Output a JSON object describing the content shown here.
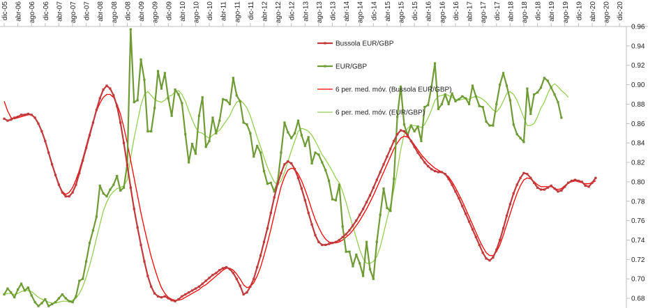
{
  "chart_data": {
    "type": "line",
    "x_tick_labels": [
      "dic-05",
      "abr-06",
      "ago-06",
      "dic-06",
      "abr-07",
      "ago-07",
      "dic-07",
      "abr-08",
      "ago-08",
      "dic-08",
      "abr-09",
      "ago-09",
      "dic-09",
      "abr-10",
      "ago-10",
      "dic-10",
      "abr-11",
      "ago-11",
      "dic-11",
      "abr-12",
      "ago-12",
      "dic-12",
      "abr-13",
      "ago-13",
      "dic-13",
      "abr-14",
      "ago-14",
      "dic-14",
      "abr-15",
      "ago-15",
      "dic-15",
      "abr-16",
      "ago-16",
      "dic-16",
      "abr-17",
      "ago-17",
      "dic-17",
      "abr-18",
      "ago-18",
      "dic-18",
      "abr-19",
      "ago-19",
      "dic-19",
      "abr-20",
      "ago-20",
      "dic-20"
    ],
    "ylim": [
      0.67,
      0.96
    ],
    "y_ticks": [
      "0.68",
      "0.70",
      "0.72",
      "0.74",
      "0.76",
      "0.78",
      "0.80",
      "0.82",
      "0.84",
      "0.86",
      "0.88",
      "0.90",
      "0.92",
      "0.94",
      "0.96"
    ],
    "series": [
      {
        "name": "Bussola EUR/GBP",
        "color": "#c0393b",
        "marker": "square",
        "values": [
          0.865,
          0.863,
          0.864,
          0.866,
          0.867,
          0.869,
          0.869,
          0.87,
          0.869,
          0.866,
          0.86,
          0.852,
          0.842,
          0.83,
          0.818,
          0.807,
          0.797,
          0.789,
          0.785,
          0.785,
          0.789,
          0.797,
          0.809,
          0.822,
          0.835,
          0.848,
          0.861,
          0.874,
          0.886,
          0.895,
          0.899,
          0.896,
          0.889,
          0.878,
          0.861,
          0.84,
          0.817,
          0.794,
          0.772,
          0.753,
          0.735,
          0.718,
          0.703,
          0.692,
          0.685,
          0.682,
          0.681,
          0.682,
          0.68,
          0.678,
          0.677,
          0.679,
          0.682,
          0.684,
          0.686,
          0.688,
          0.69,
          0.692,
          0.695,
          0.698,
          0.701,
          0.704,
          0.706,
          0.709,
          0.711,
          0.712,
          0.71,
          0.706,
          0.7,
          0.693,
          0.684,
          0.686,
          0.692,
          0.7,
          0.712,
          0.724,
          0.738,
          0.752,
          0.768,
          0.784,
          0.798,
          0.809,
          0.818,
          0.821,
          0.819,
          0.813,
          0.804,
          0.793,
          0.781,
          0.768,
          0.756,
          0.745,
          0.738,
          0.735,
          0.735,
          0.736,
          0.737,
          0.738,
          0.74,
          0.743,
          0.746,
          0.75,
          0.755,
          0.76,
          0.766,
          0.772,
          0.779,
          0.786,
          0.794,
          0.802,
          0.81,
          0.818,
          0.826,
          0.834,
          0.842,
          0.849,
          0.853,
          0.852,
          0.848,
          0.842,
          0.836,
          0.83,
          0.825,
          0.82,
          0.816,
          0.813,
          0.811,
          0.81,
          0.81,
          0.808,
          0.803,
          0.797,
          0.79,
          0.783,
          0.775,
          0.767,
          0.759,
          0.751,
          0.743,
          0.735,
          0.727,
          0.721,
          0.719,
          0.722,
          0.73,
          0.74,
          0.752,
          0.765,
          0.777,
          0.788,
          0.797,
          0.804,
          0.809,
          0.808,
          0.804,
          0.799,
          0.794,
          0.792,
          0.792,
          0.794,
          0.796,
          0.793,
          0.79,
          0.791,
          0.795,
          0.799,
          0.801,
          0.802,
          0.801,
          0.8,
          0.796,
          0.795,
          0.799,
          0.804
        ]
      },
      {
        "name": "EUR/GBP",
        "color": "#6e9b34",
        "marker": "square",
        "values": [
          0.684,
          0.69,
          0.686,
          0.681,
          0.689,
          0.695,
          0.688,
          0.691,
          0.683,
          0.676,
          0.672,
          0.675,
          0.679,
          0.672,
          0.674,
          0.676,
          0.68,
          0.684,
          0.68,
          0.677,
          0.676,
          0.682,
          0.698,
          0.7,
          0.718,
          0.737,
          0.75,
          0.764,
          0.796,
          0.788,
          0.785,
          0.792,
          0.797,
          0.806,
          0.791,
          0.794,
          0.818,
          0.957,
          0.882,
          0.884,
          0.926,
          0.905,
          0.852,
          0.852,
          0.876,
          0.914,
          0.896,
          0.912,
          0.886,
          0.868,
          0.895,
          0.89,
          0.881,
          0.849,
          0.82,
          0.839,
          0.829,
          0.868,
          0.887,
          0.836,
          0.842,
          0.866,
          0.85,
          0.863,
          0.885,
          0.884,
          0.88,
          0.907,
          0.889,
          0.883,
          0.861,
          0.859,
          0.85,
          0.826,
          0.837,
          0.83,
          0.811,
          0.798,
          0.799,
          0.79,
          0.8,
          0.83,
          0.861,
          0.851,
          0.845,
          0.85,
          0.863,
          0.848,
          0.837,
          0.846,
          0.819,
          0.83,
          0.828,
          0.82,
          0.812,
          0.801,
          0.782,
          0.781,
          0.797,
          0.754,
          0.728,
          0.728,
          0.713,
          0.725,
          0.716,
          0.703,
          0.738,
          0.71,
          0.7,
          0.738,
          0.766,
          0.793,
          0.773,
          0.77,
          0.803,
          0.867,
          0.898,
          0.859,
          0.848,
          0.858,
          0.852,
          0.857,
          0.842,
          0.877,
          0.879,
          0.898,
          0.922,
          0.875,
          0.88,
          0.89,
          0.88,
          0.891,
          0.883,
          0.885,
          0.888,
          0.886,
          0.88,
          0.899,
          0.888,
          0.878,
          0.877,
          0.862,
          0.858,
          0.858,
          0.88,
          0.9,
          0.912,
          0.899,
          0.884,
          0.859,
          0.849,
          0.845,
          0.841,
          0.896,
          0.87,
          0.89,
          0.892,
          0.897,
          0.907,
          0.904,
          0.897,
          0.89,
          0.882,
          0.866
        ]
      },
      {
        "name": "6 per. med. móv. (Bussola EUR/GBP)",
        "color": "#ff0000",
        "marker": "none",
        "values": [
          0.883,
          0.873,
          0.866,
          0.865,
          0.866,
          0.867,
          0.868,
          0.869,
          0.869,
          0.866,
          0.86,
          0.852,
          0.842,
          0.83,
          0.818,
          0.807,
          0.797,
          0.79,
          0.787,
          0.789,
          0.794,
          0.802,
          0.812,
          0.824,
          0.837,
          0.85,
          0.862,
          0.873,
          0.881,
          0.887,
          0.89,
          0.89,
          0.887,
          0.88,
          0.87,
          0.856,
          0.84,
          0.822,
          0.804,
          0.786,
          0.768,
          0.752,
          0.737,
          0.723,
          0.711,
          0.7,
          0.691,
          0.685,
          0.681,
          0.679,
          0.678,
          0.678,
          0.679,
          0.681,
          0.683,
          0.685,
          0.687,
          0.689,
          0.692,
          0.694,
          0.697,
          0.7,
          0.703,
          0.706,
          0.709,
          0.711,
          0.711,
          0.709,
          0.705,
          0.7,
          0.694,
          0.691,
          0.692,
          0.696,
          0.703,
          0.712,
          0.724,
          0.737,
          0.751,
          0.766,
          0.781,
          0.795,
          0.805,
          0.812,
          0.814,
          0.813,
          0.808,
          0.801,
          0.792,
          0.782,
          0.771,
          0.761,
          0.753,
          0.746,
          0.741,
          0.738,
          0.737,
          0.737,
          0.738,
          0.74,
          0.743,
          0.746,
          0.75,
          0.755,
          0.76,
          0.766,
          0.772,
          0.779,
          0.786,
          0.794,
          0.802,
          0.81,
          0.818,
          0.826,
          0.834,
          0.84,
          0.845,
          0.847,
          0.846,
          0.843,
          0.838,
          0.833,
          0.828,
          0.824,
          0.82,
          0.817,
          0.814,
          0.812,
          0.81,
          0.808,
          0.805,
          0.8,
          0.794,
          0.787,
          0.78,
          0.772,
          0.764,
          0.756,
          0.748,
          0.74,
          0.733,
          0.727,
          0.724,
          0.724,
          0.728,
          0.735,
          0.745,
          0.756,
          0.767,
          0.778,
          0.788,
          0.796,
          0.802,
          0.804,
          0.803,
          0.8,
          0.797,
          0.795,
          0.795,
          0.795,
          0.795,
          0.793,
          0.792,
          0.793,
          0.796,
          0.799,
          0.8,
          0.801,
          0.8,
          0.799,
          0.798,
          0.798,
          0.799,
          0.801
        ]
      },
      {
        "name": "6 per. med. móv. (EUR/GBP)",
        "color": "#92d050",
        "marker": "none",
        "values": [
          0.684,
          0.685,
          0.685,
          0.684,
          0.685,
          0.687,
          0.688,
          0.688,
          0.687,
          0.684,
          0.681,
          0.679,
          0.678,
          0.676,
          0.675,
          0.675,
          0.676,
          0.677,
          0.677,
          0.677,
          0.678,
          0.68,
          0.685,
          0.692,
          0.702,
          0.714,
          0.727,
          0.742,
          0.756,
          0.77,
          0.779,
          0.786,
          0.79,
          0.793,
          0.794,
          0.796,
          0.802,
          0.825,
          0.845,
          0.862,
          0.879,
          0.89,
          0.893,
          0.889,
          0.885,
          0.883,
          0.882,
          0.884,
          0.888,
          0.889,
          0.893,
          0.894,
          0.89,
          0.883,
          0.873,
          0.864,
          0.856,
          0.851,
          0.85,
          0.847,
          0.845,
          0.848,
          0.851,
          0.853,
          0.858,
          0.863,
          0.868,
          0.876,
          0.882,
          0.884,
          0.881,
          0.876,
          0.868,
          0.857,
          0.846,
          0.836,
          0.825,
          0.815,
          0.807,
          0.8,
          0.797,
          0.801,
          0.81,
          0.821,
          0.832,
          0.842,
          0.852,
          0.855,
          0.854,
          0.852,
          0.848,
          0.842,
          0.835,
          0.828,
          0.823,
          0.817,
          0.811,
          0.804,
          0.799,
          0.79,
          0.779,
          0.766,
          0.754,
          0.742,
          0.73,
          0.721,
          0.716,
          0.716,
          0.718,
          0.723,
          0.733,
          0.747,
          0.762,
          0.776,
          0.792,
          0.812,
          0.833,
          0.849,
          0.855,
          0.858,
          0.858,
          0.857,
          0.856,
          0.859,
          0.866,
          0.874,
          0.884,
          0.888,
          0.889,
          0.89,
          0.889,
          0.887,
          0.885,
          0.884,
          0.885,
          0.886,
          0.885,
          0.887,
          0.888,
          0.887,
          0.885,
          0.882,
          0.878,
          0.874,
          0.872,
          0.876,
          0.883,
          0.891,
          0.893,
          0.89,
          0.884,
          0.875,
          0.866,
          0.858,
          0.858,
          0.86,
          0.867,
          0.876,
          0.882,
          0.891,
          0.898,
          0.901,
          0.898,
          0.894,
          0.891,
          0.887
        ]
      }
    ],
    "legend": {
      "position": "top-center"
    },
    "grid": false
  }
}
